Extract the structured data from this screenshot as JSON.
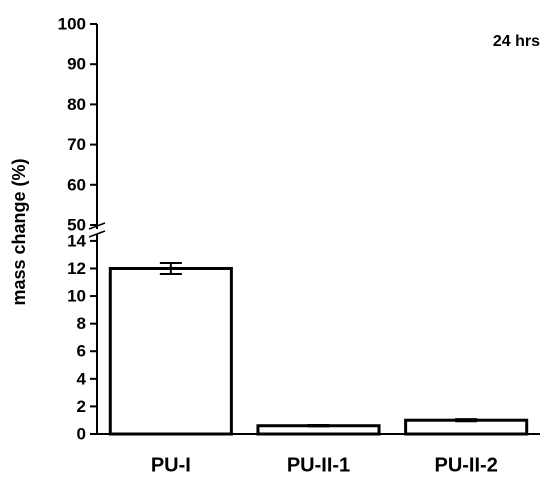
{
  "chart_data": {
    "type": "bar",
    "y_label": "mass change (%)",
    "annotation": "24 hrs",
    "categories": [
      "PU-I",
      "PU-II-1",
      "PU-II-2"
    ],
    "values": [
      12,
      0.6,
      1.0
    ],
    "errors": [
      0.4,
      0.05,
      0.08
    ],
    "color": "#ffffff",
    "edge_color": "#000000",
    "y_segments": [
      {
        "ylim": [
          0,
          14.5
        ],
        "yticks": [
          0,
          2,
          4,
          6,
          8,
          10,
          12,
          14
        ]
      },
      {
        "ylim": [
          49,
          100
        ],
        "yticks": [
          50,
          60,
          70,
          80,
          90,
          100
        ]
      }
    ]
  }
}
